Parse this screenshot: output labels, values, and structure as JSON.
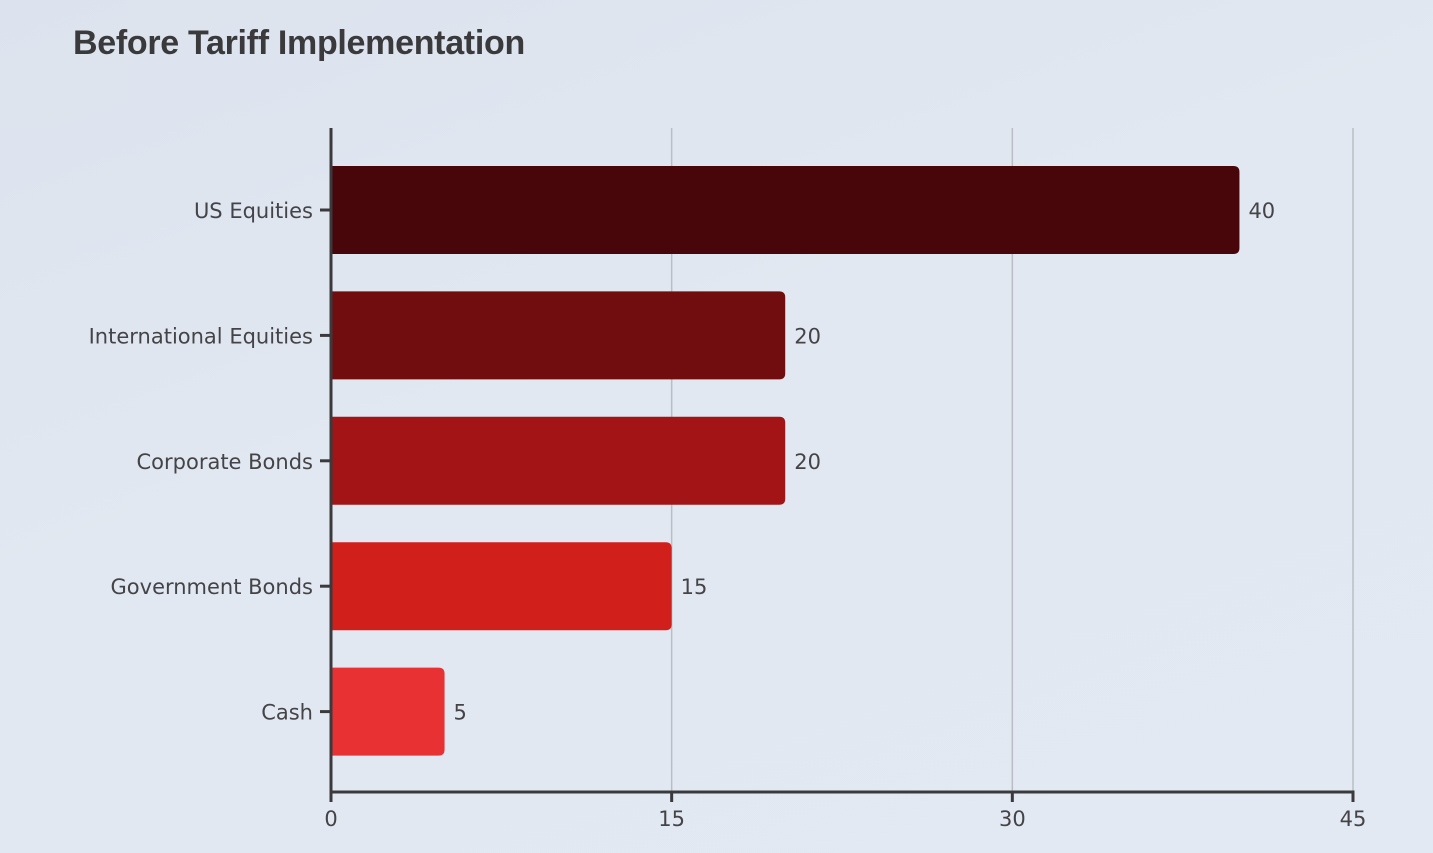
{
  "chart_data": {
    "type": "bar",
    "orientation": "horizontal",
    "title": "Before Tariff Implementation",
    "xlabel": "",
    "ylabel": "",
    "categories": [
      "US Equities",
      "International Equities",
      "Corporate Bonds",
      "Government Bonds",
      "Cash"
    ],
    "values": [
      40,
      20,
      20,
      15,
      5
    ],
    "colors": [
      "#48060a",
      "#720d0f",
      "#a21416",
      "#d11f1b",
      "#e73133"
    ],
    "xlim": [
      0,
      45
    ],
    "xticks": [
      0,
      15,
      30,
      45
    ],
    "grid": true,
    "data_labels": true
  }
}
